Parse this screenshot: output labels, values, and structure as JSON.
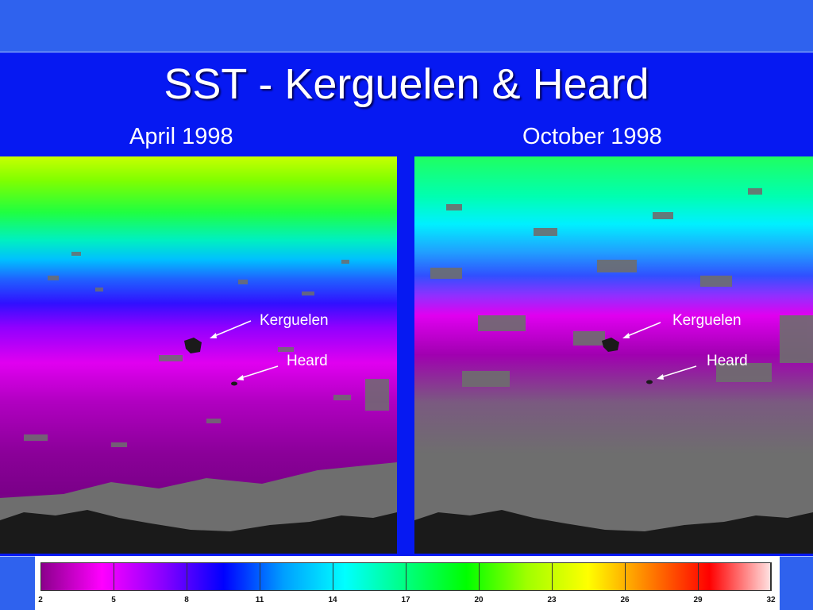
{
  "slide": {
    "title": "SST -  Kerguelen & Heard",
    "left_caption": "April 1998",
    "right_caption": "October 1998"
  },
  "maps": {
    "left": {
      "kerguelen_label": "Kerguelen",
      "heard_label": "Heard"
    },
    "right": {
      "kerguelen_label": "Kerguelen",
      "heard_label": "Heard"
    }
  },
  "legend": {
    "ticks": [
      "2",
      "5",
      "8",
      "11",
      "14",
      "17",
      "20",
      "23",
      "26",
      "29",
      "32"
    ],
    "colors": [
      "#8b008b",
      "#ff00ff",
      "#8a00ff",
      "#0000ff",
      "#00a0ff",
      "#00ffff",
      "#00ff80",
      "#00ff00",
      "#a0ff00",
      "#ffff00",
      "#ff8000",
      "#ff0000",
      "#ffe0e0"
    ]
  },
  "colors": {
    "slide_background": "#0619f2",
    "title_text": "#ffffff",
    "land_mass": "#1a1a1a",
    "no_data": "#6e6e6e"
  }
}
